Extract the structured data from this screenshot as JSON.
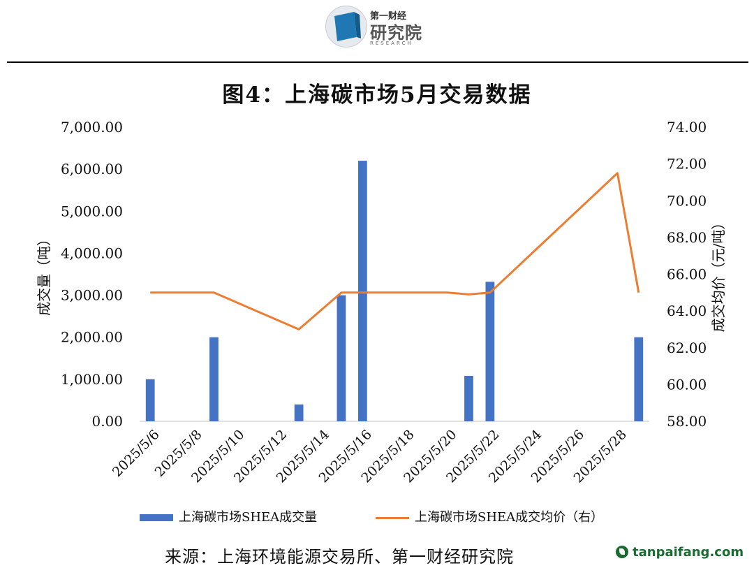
{
  "header": {
    "logo_small": "第一财经",
    "logo_big": "研究院",
    "logo_en": "RESEARCH"
  },
  "title": "图4：上海碳市场5月交易数据",
  "chart_data": {
    "type": "bar+line",
    "title": "图4：上海碳市场5月交易数据",
    "ylabel_left": "成交量（吨）",
    "ylabel_right": "成交均价（元/吨）",
    "ylim_left": [
      0,
      7000
    ],
    "ylim_right": [
      58,
      74
    ],
    "left_ticks": [
      "0.00",
      "1,000.00",
      "2,000.00",
      "3,000.00",
      "4,000.00",
      "5,000.00",
      "6,000.00",
      "7,000.00"
    ],
    "right_ticks": [
      "58.00",
      "60.00",
      "62.00",
      "64.00",
      "66.00",
      "68.00",
      "70.00",
      "72.00",
      "74.00"
    ],
    "x_ticks": [
      "2025/5/6",
      "2025/5/8",
      "2025/5/10",
      "2025/5/12",
      "2025/5/14",
      "2025/5/16",
      "2025/5/18",
      "2025/5/20",
      "2025/5/22",
      "2025/5/24",
      "2025/5/26",
      "2025/5/28"
    ],
    "x_start": "2025/5/6",
    "x_end": "2025/5/29",
    "grid": false,
    "legend_position": "bottom",
    "series": [
      {
        "name": "上海碳市场SHEA成交量",
        "type": "bar",
        "axis": "left",
        "color": "#4472c4",
        "points": [
          {
            "date": "2025/5/6",
            "value": 1000
          },
          {
            "date": "2025/5/9",
            "value": 2000
          },
          {
            "date": "2025/5/13",
            "value": 400
          },
          {
            "date": "2025/5/15",
            "value": 3000
          },
          {
            "date": "2025/5/16",
            "value": 6200
          },
          {
            "date": "2025/5/21",
            "value": 1080
          },
          {
            "date": "2025/5/22",
            "value": 3320
          },
          {
            "date": "2025/5/29",
            "value": 2000
          }
        ]
      },
      {
        "name": "上海碳市场SHEA成交均价（右）",
        "type": "line",
        "axis": "right",
        "color": "#ed7d31",
        "points": [
          {
            "date": "2025/5/6",
            "value": 65.0
          },
          {
            "date": "2025/5/9",
            "value": 65.0
          },
          {
            "date": "2025/5/13",
            "value": 63.0
          },
          {
            "date": "2025/5/15",
            "value": 65.0
          },
          {
            "date": "2025/5/16",
            "value": 65.0
          },
          {
            "date": "2025/5/20",
            "value": 65.0
          },
          {
            "date": "2025/5/21",
            "value": 64.9
          },
          {
            "date": "2025/5/22",
            "value": 65.0
          },
          {
            "date": "2025/5/28",
            "value": 71.5
          },
          {
            "date": "2025/5/29",
            "value": 65.0
          }
        ]
      }
    ]
  },
  "legend": {
    "bar_label": "上海碳市场SHEA成交量",
    "line_label": "上海碳市场SHEA成交均价（右）"
  },
  "source": "来源：上海环境能源交易所、第一财经研究院",
  "watermark": "tanpaifang.com"
}
